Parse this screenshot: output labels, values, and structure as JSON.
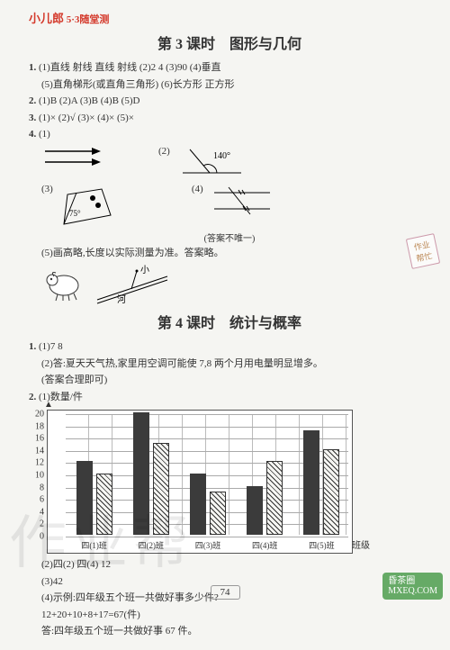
{
  "header": {
    "brand": "小儿郎",
    "sub": "5·3随堂测"
  },
  "lesson3": {
    "title": "第 3 课时　图形与几何",
    "q1": {
      "num": "1.",
      "line1": "(1)直线  射线  直线  射线  (2)2  4  (3)90  (4)垂直",
      "line2": "(5)直角梯形(或直角三角形)  (6)长方形  正方形"
    },
    "q2": {
      "num": "2.",
      "text": "(1)B  (2)A  (3)B  (4)B  (5)D"
    },
    "q3": {
      "num": "3.",
      "text": "(1)×  (2)√  (3)×  (4)×  (5)×"
    },
    "q4": {
      "num": "4.",
      "p1": "(1)",
      "p2": "(2)",
      "p3": "(3)",
      "p4": "(4)",
      "angle2": "140°",
      "angle3": "75°",
      "note": "(答案不唯一)",
      "p5": "(5)画高略,长度以实际测量为准。答案略。",
      "sheep_label_small": "小",
      "sheep_label_river": "河"
    }
  },
  "badge": {
    "l1": "作业",
    "l2": "帮忙"
  },
  "lesson4": {
    "title": "第 4 课时　统计与概率",
    "q1": {
      "num": "1.",
      "p1": "(1)7  8",
      "p2": "(2)答:夏天天气热,家里用空调可能使 7,8 两个月用电量明显增多。",
      "p2b": "(答案合理即可)"
    },
    "q2": {
      "num": "2.",
      "p1": "(1)数量/件",
      "chart": {
        "yticks": [
          0,
          2,
          4,
          6,
          8,
          10,
          12,
          14,
          16,
          18,
          20
        ],
        "ymax": 20,
        "xcats": [
          "四(1)班",
          "四(2)班",
          "四(3)班",
          "四(4)班",
          "四(5)班"
        ],
        "series": [
          {
            "style": "solid",
            "values": [
              12,
              20,
              10,
              8,
              17
            ]
          },
          {
            "style": "hatch",
            "values": [
              10,
              15,
              7,
              12,
              14
            ]
          }
        ],
        "yunit": "",
        "xunit": "班级"
      },
      "p2": "(2)四(2)  四(4)  12",
      "p3": "(3)42",
      "p4a": "(4)示例:四年级五个班一共做好事多少件?",
      "p4b": "12+20+10+8+17=67(件)",
      "p4c": "答:四年级五个班一共做好事 67 件。"
    }
  },
  "page_number": "74",
  "watermark": "作业帮",
  "stamp": {
    "l1": "昏茶圈",
    "l2": "MXEQ.COM"
  }
}
